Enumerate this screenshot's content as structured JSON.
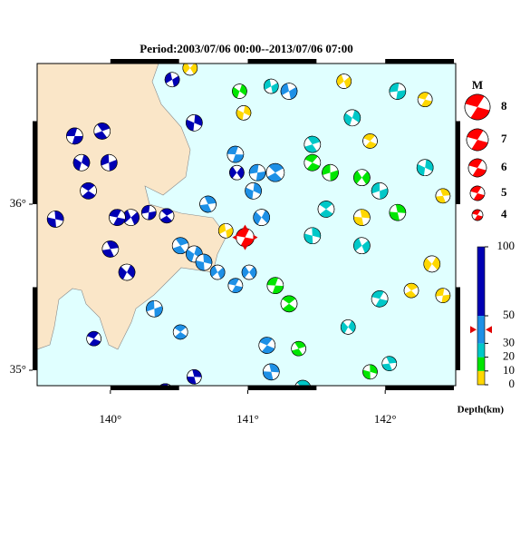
{
  "title": "Period:2003/07/06 00:00--2013/07/06 07:00",
  "map": {
    "lonlim": [
      139.467,
      142.513
    ],
    "latlim": [
      34.907,
      36.847
    ],
    "lonticks": [
      {
        "value": 140,
        "label": "140°"
      },
      {
        "value": 141,
        "label": "141°"
      },
      {
        "value": 142,
        "label": "142°"
      }
    ],
    "latticks": [
      {
        "value": 35,
        "label": "35°"
      },
      {
        "value": 36,
        "label": "36°"
      }
    ],
    "land_color": "#fae6c8",
    "sea_color": "#e0ffff"
  },
  "magnitude_legend": {
    "label": "M",
    "values": [
      8,
      7,
      6,
      5,
      4
    ],
    "color": "#ff0000"
  },
  "depth_scale": {
    "label": "Depth(km)",
    "ticks": [
      0,
      10,
      20,
      30,
      50,
      100
    ],
    "colors": [
      "#ffd700",
      "#00e600",
      "#00c8c8",
      "#1e90e6",
      "#0000b4"
    ]
  },
  "main_event": {
    "lon": 140.98,
    "lat": 35.8,
    "depth": 40,
    "mag": 6
  },
  "events": [
    [
      139.74,
      36.41,
      60,
      5.5
    ],
    [
      139.94,
      36.44,
      60,
      5.5
    ],
    [
      139.79,
      36.25,
      60,
      5.5
    ],
    [
      139.99,
      36.25,
      60,
      5.5
    ],
    [
      139.84,
      36.08,
      60,
      5.5
    ],
    [
      139.6,
      35.91,
      60,
      5.5
    ],
    [
      140.15,
      35.92,
      60,
      5.5
    ],
    [
      140.05,
      35.92,
      60,
      5.5
    ],
    [
      140.0,
      35.73,
      60,
      5.5
    ],
    [
      140.12,
      35.59,
      60,
      5.5
    ],
    [
      140.28,
      35.95,
      60,
      5
    ],
    [
      140.41,
      35.93,
      60,
      5
    ],
    [
      140.61,
      36.49,
      60,
      5.5
    ],
    [
      140.45,
      36.75,
      60,
      5
    ],
    [
      139.88,
      35.19,
      60,
      5
    ],
    [
      140.61,
      34.96,
      60,
      5
    ],
    [
      140.92,
      36.19,
      60,
      5
    ],
    [
      140.4,
      34.87,
      60,
      5.5
    ],
    [
      140.51,
      35.75,
      40,
      5.5
    ],
    [
      140.61,
      35.7,
      40,
      5.5
    ],
    [
      140.32,
      35.37,
      40,
      5.5
    ],
    [
      140.51,
      35.23,
      40,
      5
    ],
    [
      140.68,
      35.65,
      40,
      5.5
    ],
    [
      140.78,
      35.59,
      40,
      5
    ],
    [
      140.91,
      35.51,
      40,
      5
    ],
    [
      140.71,
      36.0,
      40,
      5.5
    ],
    [
      141.1,
      35.92,
      40,
      5.5
    ],
    [
      141.07,
      36.19,
      40,
      5.5
    ],
    [
      141.2,
      36.19,
      40,
      6
    ],
    [
      141.04,
      36.08,
      40,
      5.5
    ],
    [
      141.3,
      36.68,
      40,
      5.5
    ],
    [
      141.14,
      35.15,
      40,
      5.5
    ],
    [
      141.17,
      34.99,
      40,
      5.5
    ],
    [
      141.01,
      35.59,
      40,
      5
    ],
    [
      140.91,
      36.3,
      40,
      5.5
    ],
    [
      141.47,
      36.36,
      25,
      5.5
    ],
    [
      141.76,
      36.52,
      25,
      5.5
    ],
    [
      141.96,
      36.08,
      25,
      5.5
    ],
    [
      141.57,
      35.97,
      25,
      5.5
    ],
    [
      141.47,
      35.81,
      25,
      5.5
    ],
    [
      141.83,
      35.75,
      25,
      5.5
    ],
    [
      141.96,
      35.43,
      25,
      5.5
    ],
    [
      142.03,
      35.04,
      25,
      5
    ],
    [
      141.73,
      35.26,
      25,
      5
    ],
    [
      142.09,
      36.68,
      25,
      5.5
    ],
    [
      141.4,
      34.89,
      25,
      5.5
    ],
    [
      142.29,
      36.22,
      25,
      5.5
    ],
    [
      141.17,
      36.71,
      25,
      5
    ],
    [
      141.47,
      36.25,
      15,
      5.5
    ],
    [
      142.09,
      35.95,
      15,
      5.5
    ],
    [
      141.83,
      36.16,
      15,
      5.5
    ],
    [
      141.2,
      35.51,
      15,
      5.5
    ],
    [
      141.37,
      35.13,
      15,
      5
    ],
    [
      140.94,
      36.68,
      15,
      5
    ],
    [
      141.6,
      36.19,
      15,
      5.5
    ],
    [
      141.3,
      35.4,
      15,
      5.5
    ],
    [
      141.89,
      34.99,
      15,
      5
    ],
    [
      141.7,
      36.74,
      5,
      5
    ],
    [
      142.29,
      36.63,
      5,
      5
    ],
    [
      142.42,
      36.05,
      5,
      5
    ],
    [
      142.34,
      35.64,
      5,
      5.5
    ],
    [
      142.42,
      35.45,
      5,
      5
    ],
    [
      142.19,
      35.48,
      5,
      5
    ],
    [
      140.97,
      36.55,
      5,
      5
    ],
    [
      140.84,
      35.84,
      5,
      5
    ],
    [
      141.89,
      36.38,
      5,
      5
    ],
    [
      141.83,
      35.92,
      5,
      5.5
    ],
    [
      140.58,
      36.82,
      5,
      5
    ]
  ]
}
